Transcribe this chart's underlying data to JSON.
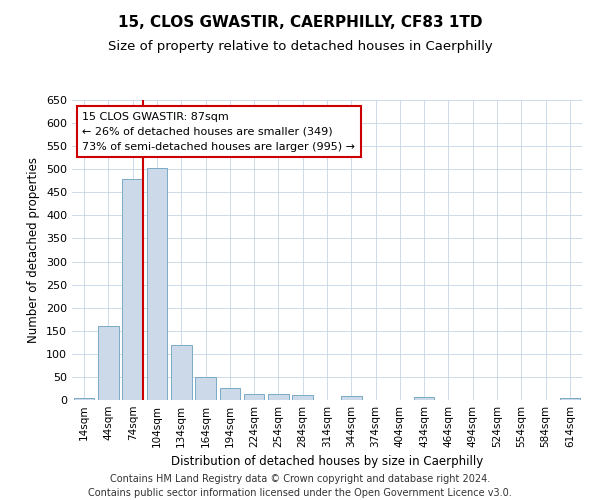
{
  "title": "15, CLOS GWASTIR, CAERPHILLY, CF83 1TD",
  "subtitle": "Size of property relative to detached houses in Caerphilly",
  "xlabel": "Distribution of detached houses by size in Caerphilly",
  "ylabel": "Number of detached properties",
  "bins": [
    "14sqm",
    "44sqm",
    "74sqm",
    "104sqm",
    "134sqm",
    "164sqm",
    "194sqm",
    "224sqm",
    "254sqm",
    "284sqm",
    "314sqm",
    "344sqm",
    "374sqm",
    "404sqm",
    "434sqm",
    "464sqm",
    "494sqm",
    "524sqm",
    "554sqm",
    "584sqm",
    "614sqm"
  ],
  "values": [
    5,
    160,
    478,
    503,
    120,
    50,
    25,
    14,
    12,
    10,
    0,
    8,
    0,
    0,
    6,
    0,
    0,
    0,
    0,
    0,
    5
  ],
  "bar_color": "#ccd9e8",
  "bar_edge_color": "#7aaac8",
  "annotation_text": "15 CLOS GWASTIR: 87sqm\n← 26% of detached houses are smaller (349)\n73% of semi-detached houses are larger (995) →",
  "annotation_box_color": "#ffffff",
  "annotation_box_edge": "#cc0000",
  "vline_color": "#cc0000",
  "ylim": [
    0,
    650
  ],
  "yticks": [
    0,
    50,
    100,
    150,
    200,
    250,
    300,
    350,
    400,
    450,
    500,
    550,
    600,
    650
  ],
  "grid_color": "#c5d5e5",
  "footer": "Contains HM Land Registry data © Crown copyright and database right 2024.\nContains public sector information licensed under the Open Government Licence v3.0.",
  "bg_color": "#ffffff",
  "title_fontsize": 11,
  "subtitle_fontsize": 9.5,
  "annotation_fontsize": 8.0,
  "footer_fontsize": 7.0,
  "ylabel_fontsize": 8.5,
  "xlabel_fontsize": 8.5,
  "tick_fontsize": 8.0,
  "xtick_fontsize": 7.5
}
